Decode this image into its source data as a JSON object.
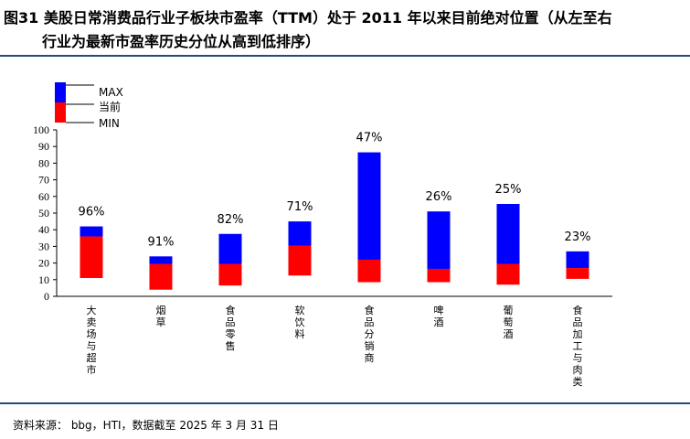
{
  "title": {
    "line1": "图31 美股日常消费品行业子板块市盈率（TTM）处于 2011 年以来目前绝对位置（从左至右",
    "line2": "行业为最新市盈率历史分位从高到低排序）"
  },
  "source": "资料来源： bbg，HTI，数据截至 2025 年 3 月 31 日",
  "colors": {
    "max_band": "#0000ff",
    "current_band": "#ff0000",
    "axis": "#000000",
    "rule": "#1f4e79"
  },
  "chart_data": {
    "type": "bar",
    "subtype": "floating-range",
    "legend": {
      "labels": [
        "MAX",
        "当前",
        "MIN"
      ],
      "placement": "top-left"
    },
    "categories": [
      "大卖场与超市",
      "烟草",
      "食品零售",
      "软饮料",
      "食品分销商",
      "啤酒",
      "葡萄酒",
      "食品加工与肉类"
    ],
    "min": [
      11,
      4,
      6.5,
      12.5,
      8.5,
      8.5,
      7,
      10.5
    ],
    "current": [
      36,
      19.5,
      19.5,
      30.5,
      22,
      16.5,
      19.5,
      17
    ],
    "max": [
      42,
      24,
      37.5,
      45,
      86.5,
      51,
      55.5,
      27
    ],
    "percentile_labels": [
      "96%",
      "91%",
      "82%",
      "71%",
      "47%",
      "26%",
      "25%",
      "23%"
    ],
    "ylim": [
      0,
      100
    ],
    "yticks": [
      0,
      10,
      20,
      30,
      40,
      50,
      60,
      70,
      80,
      90,
      100
    ],
    "grid": false
  }
}
